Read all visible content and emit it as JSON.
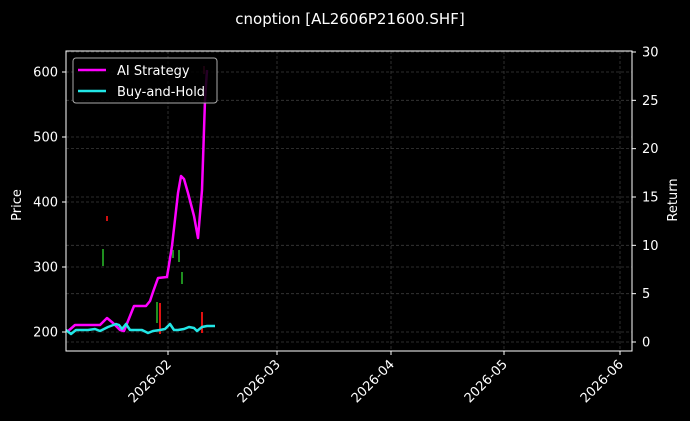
{
  "chart_data": {
    "type": "line",
    "title": "cnoption [AL2606P21600.SHF]",
    "xlabel": "",
    "ylabel": "Price",
    "ylabel_right": "Return",
    "ylim": [
      172,
      630
    ],
    "ylim_right": [
      -0.9,
      30
    ],
    "grid": true,
    "legend_position": "upper left",
    "x_ticks": [
      "2026-02",
      "2026-03",
      "2026-04",
      "2026-05",
      "2026-06"
    ],
    "y_ticks": [
      200,
      300,
      400,
      500,
      600
    ],
    "y_ticks_right": [
      0,
      5,
      10,
      15,
      20,
      25,
      30
    ],
    "series": [
      {
        "name": "AI Strategy",
        "color": "#ff00ff",
        "axis": "price",
        "points": [
          [
            67,
            332
          ],
          [
            75,
            325
          ],
          [
            92,
            325
          ],
          [
            100,
            325
          ],
          [
            107,
            318
          ],
          [
            113,
            323
          ],
          [
            120,
            330
          ],
          [
            124,
            331
          ],
          [
            134,
            306
          ],
          [
            140,
            306
          ],
          [
            146,
            306
          ],
          [
            150,
            301
          ],
          [
            153,
            292
          ],
          [
            158,
            278
          ],
          [
            167,
            277
          ],
          [
            172,
            246
          ],
          [
            178,
            193
          ],
          [
            181,
            176
          ],
          [
            184,
            179
          ],
          [
            188,
            193
          ],
          [
            194,
            216
          ],
          [
            198,
            238
          ],
          [
            202,
            190
          ],
          [
            205,
            100
          ],
          [
            207,
            70
          ]
        ]
      },
      {
        "name": "Buy-and-Hold",
        "color": "#22e6e6",
        "axis": "return",
        "points": [
          [
            66,
            330
          ],
          [
            71,
            334
          ],
          [
            76,
            330
          ],
          [
            88,
            330
          ],
          [
            95,
            329
          ],
          [
            100,
            331
          ],
          [
            108,
            327
          ],
          [
            116,
            324
          ],
          [
            119,
            325
          ],
          [
            122,
            329
          ],
          [
            126,
            324
          ],
          [
            130,
            330
          ],
          [
            136,
            330
          ],
          [
            142,
            330
          ],
          [
            148,
            333
          ],
          [
            153,
            331
          ],
          [
            160,
            330
          ],
          [
            165,
            329
          ],
          [
            170,
            324
          ],
          [
            174,
            330
          ],
          [
            178,
            330
          ],
          [
            184,
            329
          ],
          [
            189,
            327
          ],
          [
            194,
            328
          ],
          [
            197,
            331
          ],
          [
            202,
            327
          ],
          [
            207,
            326
          ],
          [
            215,
            326
          ]
        ]
      }
    ],
    "candles": [
      {
        "x": 103,
        "y1": 249,
        "y2": 266,
        "color": "#1f8f1f"
      },
      {
        "x": 107,
        "y1": 216,
        "y2": 221,
        "color": "#d01010"
      },
      {
        "x": 157,
        "y1": 302,
        "y2": 323,
        "color": "#1f8f1f"
      },
      {
        "x": 160,
        "y1": 303,
        "y2": 334,
        "color": "#e01010"
      },
      {
        "x": 173,
        "y1": 250,
        "y2": 258,
        "color": "#1f8f1f"
      },
      {
        "x": 179,
        "y1": 250,
        "y2": 262,
        "color": "#1f8f1f"
      },
      {
        "x": 182,
        "y1": 272,
        "y2": 284,
        "color": "#1f8f1f"
      },
      {
        "x": 202,
        "y1": 312,
        "y2": 333,
        "color": "#e01010"
      },
      {
        "x": 204,
        "y1": 66,
        "y2": 74,
        "color": "#b01060"
      }
    ]
  }
}
